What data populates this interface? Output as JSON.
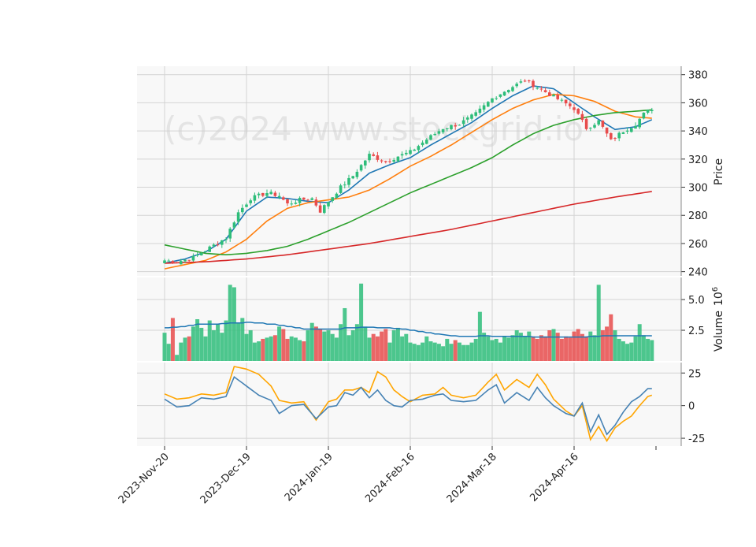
{
  "chart_data": {
    "type": "candlestick",
    "watermark": "(c)2024 www.stockgrid.io",
    "colors": {
      "up": "#2ebd7a",
      "down": "#e84c4c",
      "ma_short": "#1f77b4",
      "ma_mid": "#ff7f0e",
      "ma_long": "#2ca02c",
      "ma_xlong": "#d62728",
      "volume_ma": "#1f77b4",
      "osc_fast": "#4682b4",
      "osc_slow": "#ffa500",
      "panel_bg": "#f8f8f8",
      "grid": "#d3d3d3"
    },
    "x_tick_labels": [
      "2023-Nov-20",
      "2023-Dec-19",
      "2024-Jan-19",
      "2024-Feb-16",
      "2024-Mar-18",
      "2024-Apr-16"
    ],
    "x_tick_indices": [
      0,
      20,
      40,
      60,
      80,
      100
    ],
    "price_panel": {
      "ylabel": "Price",
      "yticks": [
        240,
        260,
        280,
        300,
        320,
        340,
        360,
        380
      ],
      "ylim": [
        237,
        386
      ],
      "ohlc_anchors": [
        [
          0,
          248
        ],
        [
          3,
          247
        ],
        [
          7,
          250
        ],
        [
          11,
          257
        ],
        [
          15,
          264
        ],
        [
          18,
          282
        ],
        [
          21,
          292
        ],
        [
          25,
          296
        ],
        [
          28,
          294
        ],
        [
          30,
          288
        ],
        [
          33,
          291
        ],
        [
          36,
          292
        ],
        [
          38,
          283
        ],
        [
          40,
          290
        ],
        [
          43,
          300
        ],
        [
          46,
          308
        ],
        [
          50,
          323
        ],
        [
          54,
          318
        ],
        [
          57,
          322
        ],
        [
          60,
          325
        ],
        [
          64,
          334
        ],
        [
          68,
          342
        ],
        [
          72,
          345
        ],
        [
          76,
          352
        ],
        [
          80,
          363
        ],
        [
          84,
          370
        ],
        [
          88,
          376
        ],
        [
          91,
          371
        ],
        [
          94,
          366
        ],
        [
          97,
          361
        ],
        [
          100,
          356
        ],
        [
          103,
          342
        ],
        [
          106,
          347
        ],
        [
          109,
          333
        ],
        [
          112,
          340
        ],
        [
          115,
          345
        ],
        [
          117,
          352
        ],
        [
          119,
          356
        ]
      ],
      "ma_lines": [
        {
          "key": "ma_short",
          "anchors": [
            [
              0,
              246
            ],
            [
              5,
              249
            ],
            [
              10,
              254
            ],
            [
              15,
              263
            ],
            [
              20,
              283
            ],
            [
              25,
              293
            ],
            [
              30,
              292
            ],
            [
              35,
              290
            ],
            [
              40,
              289
            ],
            [
              45,
              298
            ],
            [
              50,
              310
            ],
            [
              55,
              316
            ],
            [
              60,
              321
            ],
            [
              65,
              330
            ],
            [
              70,
              338
            ],
            [
              75,
              346
            ],
            [
              80,
              356
            ],
            [
              85,
              365
            ],
            [
              90,
              372
            ],
            [
              95,
              370
            ],
            [
              100,
              360
            ],
            [
              105,
              350
            ],
            [
              110,
              341
            ],
            [
              115,
              343
            ],
            [
              119,
              348
            ]
          ]
        },
        {
          "key": "ma_mid",
          "anchors": [
            [
              0,
              242
            ],
            [
              5,
              245
            ],
            [
              10,
              248
            ],
            [
              15,
              254
            ],
            [
              20,
              263
            ],
            [
              25,
              276
            ],
            [
              30,
              285
            ],
            [
              35,
              289
            ],
            [
              40,
              291
            ],
            [
              45,
              293
            ],
            [
              50,
              298
            ],
            [
              55,
              306
            ],
            [
              60,
              315
            ],
            [
              65,
              322
            ],
            [
              70,
              330
            ],
            [
              75,
              339
            ],
            [
              80,
              348
            ],
            [
              85,
              356
            ],
            [
              90,
              362
            ],
            [
              95,
              366
            ],
            [
              100,
              365
            ],
            [
              105,
              361
            ],
            [
              110,
              354
            ],
            [
              115,
              350
            ],
            [
              119,
              349
            ]
          ]
        },
        {
          "key": "ma_long",
          "anchors": [
            [
              0,
              259
            ],
            [
              5,
              256
            ],
            [
              10,
              253
            ],
            [
              15,
              252
            ],
            [
              20,
              253
            ],
            [
              25,
              255
            ],
            [
              30,
              258
            ],
            [
              35,
              263
            ],
            [
              40,
              269
            ],
            [
              45,
              275
            ],
            [
              50,
              282
            ],
            [
              55,
              289
            ],
            [
              60,
              296
            ],
            [
              65,
              302
            ],
            [
              70,
              308
            ],
            [
              75,
              314
            ],
            [
              80,
              321
            ],
            [
              85,
              330
            ],
            [
              90,
              338
            ],
            [
              95,
              344
            ],
            [
              100,
              348
            ],
            [
              105,
              351
            ],
            [
              110,
              353
            ],
            [
              115,
              354
            ],
            [
              119,
              355
            ]
          ]
        },
        {
          "key": "ma_xlong",
          "anchors": [
            [
              0,
              246
            ],
            [
              10,
              247
            ],
            [
              20,
              249
            ],
            [
              30,
              252
            ],
            [
              40,
              256
            ],
            [
              50,
              260
            ],
            [
              60,
              265
            ],
            [
              70,
              270
            ],
            [
              80,
              276
            ],
            [
              90,
              282
            ],
            [
              100,
              288
            ],
            [
              110,
              293
            ],
            [
              119,
              297
            ]
          ]
        }
      ]
    },
    "volume_panel": {
      "ylabel": "Volume",
      "ylabel_unit": "10^6",
      "unit_base": "10",
      "unit_exp": "6",
      "ytick_labels": [
        "2.5",
        "5.0"
      ],
      "yticks": [
        2.5,
        5.0
      ],
      "ylim": [
        0,
        6.8
      ],
      "values": [
        2.3,
        1.4,
        3.5,
        0.5,
        1.5,
        1.9,
        2.0,
        2.8,
        3.4,
        2.7,
        2.0,
        3.3,
        2.5,
        3.0,
        2.3,
        3.3,
        6.2,
        6.0,
        3.1,
        3.5,
        2.2,
        2.5,
        1.5,
        1.6,
        1.8,
        1.9,
        2.0,
        2.1,
        2.8,
        2.6,
        1.8,
        2.0,
        1.9,
        1.7,
        1.6,
        2.5,
        3.1,
        2.8,
        2.6,
        2.4,
        2.5,
        2.2,
        1.9,
        3.0,
        4.3,
        2.1,
        2.5,
        3.0,
        6.3,
        2.8,
        1.9,
        2.2,
        2.0,
        2.4,
        2.6,
        1.5,
        2.5,
        2.7,
        2.0,
        2.2,
        1.5,
        1.4,
        1.3,
        1.5,
        2.0,
        1.6,
        1.5,
        1.4,
        1.2,
        1.8,
        1.4,
        1.7,
        1.5,
        1.3,
        1.3,
        1.5,
        1.8,
        4.0,
        2.3,
        2.0,
        1.7,
        1.8,
        1.5,
        2.0,
        1.9,
        2.1,
        2.5,
        2.3,
        2.0,
        2.4,
        2.0,
        1.8,
        2.1,
        2.0,
        2.5,
        2.6,
        2.3,
        1.8,
        2.0,
        1.9,
        2.4,
        2.6,
        2.2,
        2.0,
        2.4,
        2.1,
        6.2,
        2.5,
        2.8,
        3.8,
        2.5,
        1.8,
        1.6,
        1.4,
        1.5,
        2.0,
        3.0,
        2.1,
        1.8,
        1.7
      ],
      "ma_values": [
        2.7,
        2.7,
        2.75,
        2.75,
        2.8,
        2.8,
        2.9,
        2.9,
        3.0,
        3.0,
        3.0,
        3.0,
        3.0,
        3.0,
        3.05,
        3.05,
        3.1,
        3.1,
        3.1,
        3.1,
        3.15,
        3.15,
        3.1,
        3.1,
        3.1,
        3.0,
        3.0,
        3.0,
        2.9,
        2.9,
        2.8,
        2.8,
        2.7,
        2.7,
        2.6,
        2.6,
        2.6,
        2.6,
        2.6,
        2.6,
        2.6,
        2.6,
        2.6,
        2.6,
        2.7,
        2.7,
        2.7,
        2.7,
        2.75,
        2.75,
        2.75,
        2.75,
        2.7,
        2.7,
        2.7,
        2.7,
        2.65,
        2.65,
        2.6,
        2.6,
        2.5,
        2.5,
        2.4,
        2.4,
        2.3,
        2.3,
        2.2,
        2.2,
        2.15,
        2.1,
        2.05,
        2.05,
        2.0,
        2.0,
        2.0,
        2.0,
        2.0,
        2.05,
        2.05,
        2.05,
        2.0,
        2.0,
        2.0,
        2.0,
        2.0,
        2.0,
        2.0,
        2.0,
        2.0,
        2.0,
        1.95,
        1.95,
        1.95,
        1.95,
        1.95,
        1.95,
        1.95,
        1.95,
        1.95,
        1.95,
        1.95,
        1.95,
        1.95,
        1.95,
        2.0,
        2.0,
        2.0,
        2.05,
        2.05,
        2.05,
        2.05,
        2.05,
        2.05,
        2.05,
        2.05,
        2.05,
        2.05,
        2.05,
        2.05,
        2.05
      ]
    },
    "oscillator_panel": {
      "ytick_labels": [
        "-25",
        "0",
        "25"
      ],
      "yticks": [
        -25,
        0,
        25
      ],
      "ylim": [
        -31,
        33
      ],
      "fast_anchors": [
        [
          0,
          5
        ],
        [
          3,
          -1
        ],
        [
          6,
          0
        ],
        [
          9,
          6
        ],
        [
          12,
          5
        ],
        [
          15,
          7
        ],
        [
          17,
          22
        ],
        [
          20,
          15
        ],
        [
          23,
          8
        ],
        [
          26,
          4
        ],
        [
          28,
          -6
        ],
        [
          31,
          0
        ],
        [
          34,
          1
        ],
        [
          37,
          -10
        ],
        [
          40,
          -1
        ],
        [
          42,
          0
        ],
        [
          44,
          10
        ],
        [
          46,
          8
        ],
        [
          48,
          14
        ],
        [
          50,
          6
        ],
        [
          52,
          12
        ],
        [
          54,
          4
        ],
        [
          56,
          0
        ],
        [
          58,
          -1
        ],
        [
          60,
          4
        ],
        [
          63,
          5
        ],
        [
          66,
          8
        ],
        [
          68,
          9
        ],
        [
          70,
          4
        ],
        [
          73,
          3
        ],
        [
          76,
          4
        ],
        [
          79,
          12
        ],
        [
          81,
          16
        ],
        [
          83,
          2
        ],
        [
          86,
          10
        ],
        [
          89,
          4
        ],
        [
          91,
          14
        ],
        [
          93,
          6
        ],
        [
          95,
          0
        ],
        [
          98,
          -6
        ],
        [
          100,
          -8
        ],
        [
          102,
          2
        ],
        [
          104,
          -20
        ],
        [
          106,
          -7
        ],
        [
          108,
          -22
        ],
        [
          110,
          -15
        ],
        [
          112,
          -5
        ],
        [
          114,
          3
        ],
        [
          116,
          7
        ],
        [
          118,
          13
        ],
        [
          119,
          13
        ]
      ],
      "slow_anchors": [
        [
          0,
          9
        ],
        [
          3,
          5
        ],
        [
          6,
          6
        ],
        [
          9,
          9
        ],
        [
          12,
          8
        ],
        [
          15,
          10
        ],
        [
          17,
          30
        ],
        [
          20,
          28
        ],
        [
          23,
          24
        ],
        [
          26,
          15
        ],
        [
          28,
          4
        ],
        [
          31,
          2
        ],
        [
          34,
          3
        ],
        [
          37,
          -11
        ],
        [
          40,
          3
        ],
        [
          42,
          5
        ],
        [
          44,
          12
        ],
        [
          46,
          12
        ],
        [
          48,
          14
        ],
        [
          50,
          10
        ],
        [
          52,
          26
        ],
        [
          54,
          22
        ],
        [
          56,
          12
        ],
        [
          58,
          7
        ],
        [
          60,
          3
        ],
        [
          63,
          8
        ],
        [
          66,
          9
        ],
        [
          68,
          14
        ],
        [
          70,
          8
        ],
        [
          73,
          6
        ],
        [
          76,
          8
        ],
        [
          79,
          18
        ],
        [
          81,
          24
        ],
        [
          83,
          12
        ],
        [
          86,
          20
        ],
        [
          89,
          14
        ],
        [
          91,
          24
        ],
        [
          93,
          16
        ],
        [
          95,
          5
        ],
        [
          98,
          -4
        ],
        [
          100,
          -8
        ],
        [
          102,
          0
        ],
        [
          104,
          -26
        ],
        [
          106,
          -16
        ],
        [
          108,
          -27
        ],
        [
          110,
          -17
        ],
        [
          112,
          -12
        ],
        [
          114,
          -8
        ],
        [
          116,
          0
        ],
        [
          118,
          7
        ],
        [
          119,
          8
        ]
      ]
    }
  }
}
